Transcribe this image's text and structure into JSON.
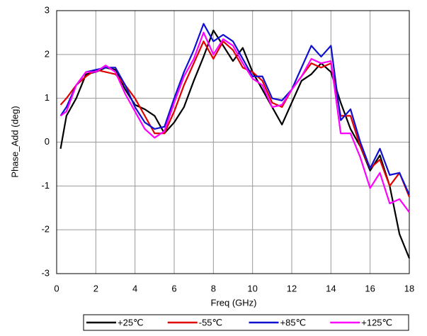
{
  "chart_data": {
    "type": "line",
    "x_label": "Freq (GHz)",
    "y_label": "Phase_Add (deg)",
    "xlim": [
      0,
      18
    ],
    "xticks": [
      0,
      2,
      4,
      6,
      8,
      10,
      12,
      14,
      16,
      18
    ],
    "ylim": [
      -3,
      3
    ],
    "yticks": [
      -3,
      -2,
      -1,
      0,
      1,
      2,
      3
    ],
    "grid": true,
    "legend": "bottom",
    "x": [
      0.2,
      0.5,
      1,
      1.5,
      2,
      2.5,
      3,
      3.5,
      4,
      4.5,
      5,
      5.5,
      6,
      6.5,
      7,
      7.5,
      8,
      8.5,
      9,
      9.5,
      10,
      10.5,
      11,
      11.5,
      12,
      12.5,
      13,
      13.5,
      14,
      14.5,
      15,
      15.5,
      16,
      16.5,
      17,
      17.5,
      18
    ],
    "series": [
      {
        "name": "+25℃",
        "color": "#000000",
        "values": [
          -0.15,
          0.6,
          1.0,
          1.55,
          1.6,
          1.7,
          1.65,
          1.2,
          0.85,
          0.75,
          0.6,
          0.2,
          0.45,
          0.8,
          1.4,
          1.95,
          2.55,
          2.2,
          1.85,
          2.15,
          1.6,
          1.2,
          0.8,
          0.4,
          0.9,
          1.4,
          1.55,
          1.8,
          1.6,
          0.9,
          0.3,
          -0.1,
          -0.65,
          -0.3,
          -1.0,
          -2.1,
          -2.65
        ]
      },
      {
        "name": "-55℃",
        "color": "#e00000",
        "values": [
          0.85,
          1.0,
          1.3,
          1.5,
          1.65,
          1.6,
          1.55,
          1.3,
          1.0,
          0.6,
          0.2,
          0.2,
          0.7,
          1.3,
          1.8,
          2.3,
          1.9,
          2.3,
          2.1,
          1.7,
          1.6,
          1.4,
          0.9,
          0.8,
          1.2,
          1.5,
          1.8,
          1.7,
          1.8,
          0.6,
          0.6,
          -0.1,
          -0.6,
          -0.4,
          -1.0,
          -0.7,
          -1.25
        ]
      },
      {
        "name": "+85℃",
        "color": "#1010d0",
        "values": [
          0.6,
          0.8,
          1.3,
          1.6,
          1.65,
          1.7,
          1.7,
          1.3,
          0.8,
          0.45,
          0.3,
          0.35,
          1.0,
          1.6,
          2.1,
          2.7,
          2.3,
          2.45,
          2.3,
          1.9,
          1.5,
          1.5,
          1.0,
          0.95,
          1.2,
          1.7,
          2.2,
          1.95,
          2.2,
          0.5,
          0.75,
          0.0,
          -0.6,
          -0.15,
          -0.75,
          -0.7,
          -1.2
        ]
      },
      {
        "name": "+125℃",
        "color": "#ff00ff",
        "values": [
          0.6,
          0.7,
          1.3,
          1.6,
          1.6,
          1.75,
          1.6,
          1.1,
          0.7,
          0.3,
          0.1,
          0.25,
          0.9,
          1.5,
          1.9,
          2.5,
          2.0,
          2.35,
          2.2,
          1.8,
          1.45,
          1.3,
          0.8,
          0.85,
          1.2,
          1.5,
          1.9,
          1.8,
          1.85,
          0.2,
          0.2,
          -0.35,
          -1.05,
          -0.7,
          -1.4,
          -1.3,
          -1.6
        ]
      }
    ]
  }
}
